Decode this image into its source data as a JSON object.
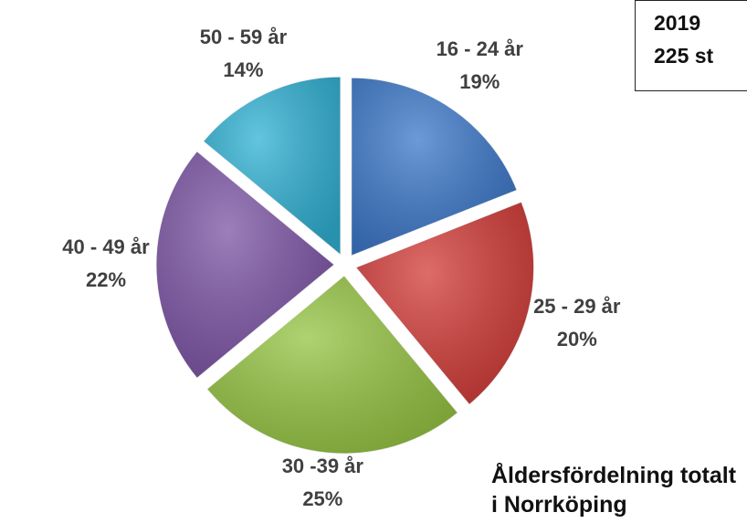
{
  "chart_data": {
    "type": "pie",
    "title": "Åldersfördelning totalt i Norrköping",
    "annotations": [
      "2019",
      "225 st"
    ],
    "categories": [
      "16 - 24 år",
      "25 - 29 år",
      "30 -39 år",
      "40 - 49 år",
      "50 - 59 år"
    ],
    "values": [
      19,
      20,
      25,
      22,
      14
    ],
    "value_labels": [
      "19%",
      "20%",
      "25%",
      "22%",
      "14%"
    ],
    "colors": [
      "#3b77c9",
      "#d23b37",
      "#95c442",
      "#7c54a5",
      "#30b1d4"
    ]
  }
}
